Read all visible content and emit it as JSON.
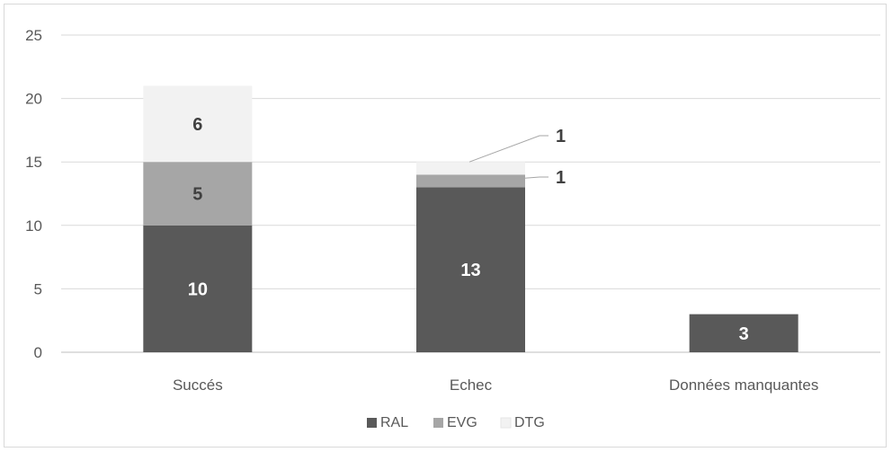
{
  "chart_data": {
    "type": "bar",
    "stacked": true,
    "categories": [
      "Succés",
      "Echec",
      "Données manquantes"
    ],
    "series": [
      {
        "name": "RAL",
        "color": "#595959",
        "values": [
          10,
          13,
          3
        ]
      },
      {
        "name": "EVG",
        "color": "#a6a6a6",
        "values": [
          5,
          1,
          0
        ]
      },
      {
        "name": "DTG",
        "color": "#f2f2f2",
        "values": [
          6,
          1,
          0
        ]
      }
    ],
    "data_labels": [
      {
        "category": "Succés",
        "series": "RAL",
        "text": "10"
      },
      {
        "category": "Succés",
        "series": "EVG",
        "text": "5"
      },
      {
        "category": "Succés",
        "series": "DTG",
        "text": "6"
      },
      {
        "category": "Echec",
        "series": "RAL",
        "text": "13"
      },
      {
        "category": "Echec",
        "series": "EVG",
        "text": "1",
        "callout": true
      },
      {
        "category": "Echec",
        "series": "DTG",
        "text": "1",
        "callout": true
      },
      {
        "category": "Données manquantes",
        "series": "RAL",
        "text": "3"
      }
    ],
    "yticks": [
      "0",
      "5",
      "10",
      "15",
      "20",
      "25"
    ],
    "ylim": [
      0,
      25
    ],
    "grid": true,
    "legend_position": "bottom"
  }
}
